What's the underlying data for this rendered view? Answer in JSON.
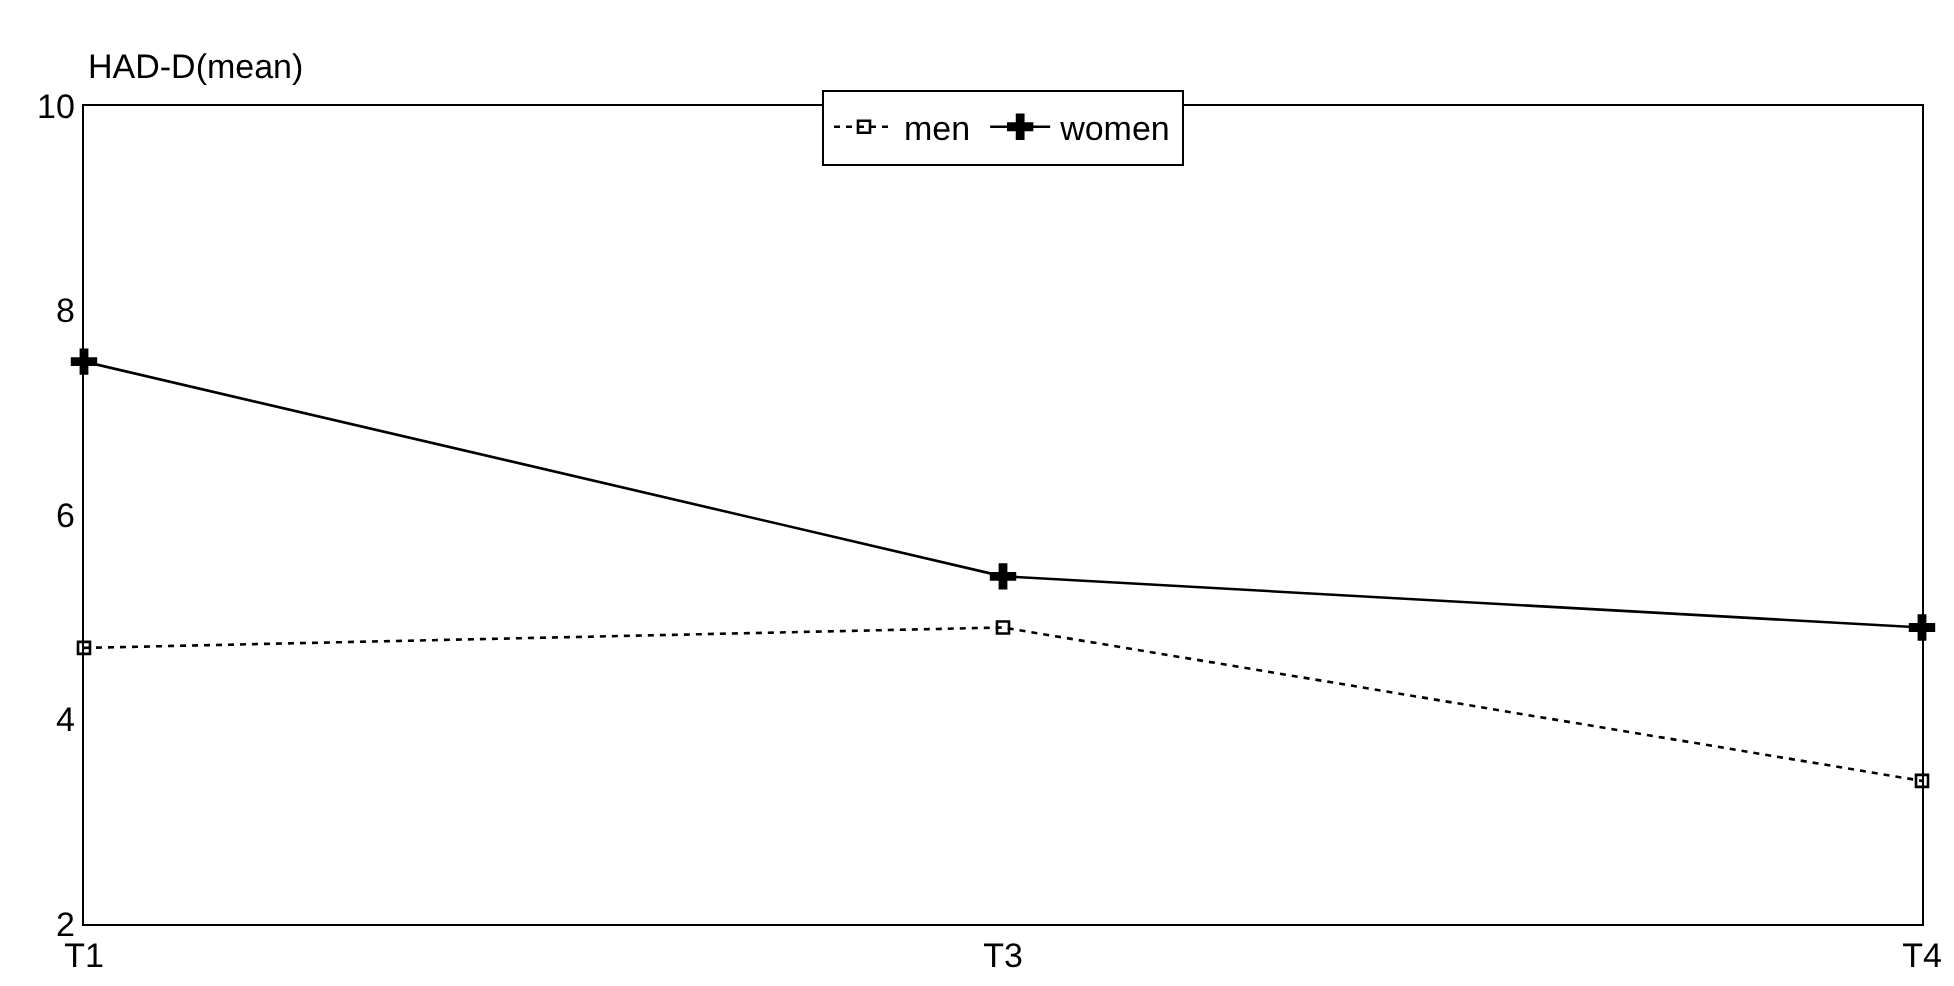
{
  "chart_data": {
    "type": "line",
    "ylabel": "HAD-D(mean)",
    "categories": [
      "T1",
      "T3",
      "T4"
    ],
    "series": [
      {
        "name": "men",
        "color": "#000000",
        "values": [
          4.7,
          4.9,
          3.4
        ],
        "marker": "square",
        "line_style": "dotted"
      },
      {
        "name": "women",
        "color": "#000000",
        "values": [
          7.5,
          5.4,
          4.9
        ],
        "marker": "cross",
        "line_style": "solid"
      }
    ],
    "ylim": [
      2,
      10
    ],
    "yticks": [
      2,
      4,
      6,
      8,
      10
    ],
    "grid": false,
    "legend": "top"
  }
}
